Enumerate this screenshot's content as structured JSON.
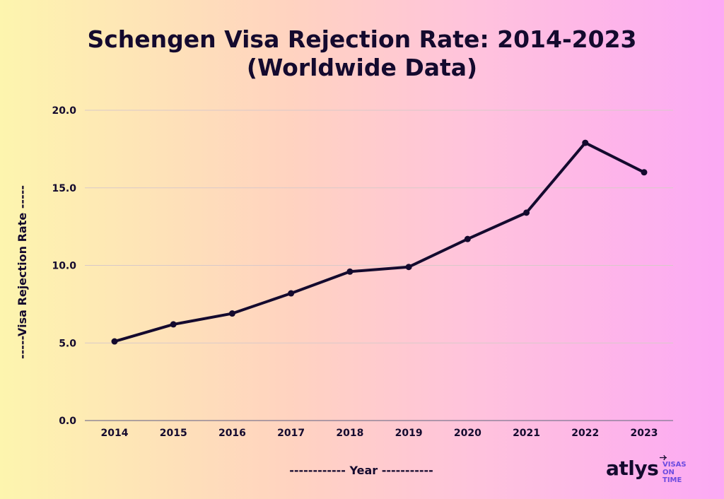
{
  "chart_data": {
    "type": "line",
    "title_line1": "Schengen Visa Rejection Rate: 2014-2023",
    "title_line2": "(Worldwide Data)",
    "xlabel": "------------ Year -----------",
    "ylabel": "-----Visa Rejection Rate -----",
    "categories": [
      "2014",
      "2015",
      "2016",
      "2017",
      "2018",
      "2019",
      "2020",
      "2021",
      "2022",
      "2023"
    ],
    "series": [
      {
        "values": [
          5.1,
          6.2,
          6.9,
          8.2,
          9.6,
          9.9,
          11.7,
          13.4,
          17.9,
          16.0
        ]
      }
    ],
    "ylim": [
      0,
      20
    ],
    "yticks": [
      "0.0",
      "5.0",
      "10.0",
      "15.0",
      "20.0"
    ],
    "grid": true,
    "line_color": "#140a2e"
  },
  "brand": {
    "name": "atlys",
    "tagline_line1": "VISAS ON",
    "tagline_line2": "TIME",
    "plane_icon": "plane-icon",
    "accent": "#6b4be0"
  }
}
